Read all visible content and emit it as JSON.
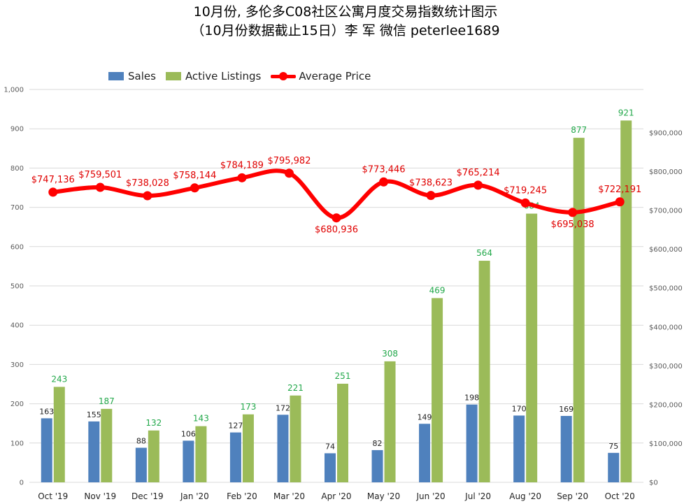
{
  "title_line1": "10月份, 多伦多C08社区公寓月度交易指数统计图示",
  "title_line2": "（10月份数据截止15日）李 军  微信  peterlee1689",
  "colors": {
    "sales": "#4f81bd",
    "listings": "#9bbb59",
    "price": "#ff0000",
    "grid": "#d9d9d9",
    "listings_label": "#22a84a"
  },
  "chart_data": {
    "type": "bar",
    "categories": [
      "Oct '19",
      "Nov '19",
      "Dec '19",
      "Jan '20",
      "Feb '20",
      "Mar '20",
      "Apr '20",
      "May '20",
      "Jun '20",
      "Jul '20",
      "Aug '20",
      "Sep '20",
      "Oct '20"
    ],
    "series": [
      {
        "name": "Sales",
        "type": "bar",
        "axis": "left",
        "values": [
          163,
          155,
          88,
          106,
          127,
          172,
          74,
          82,
          149,
          198,
          170,
          169,
          75
        ]
      },
      {
        "name": "Active Listings",
        "type": "bar",
        "axis": "left",
        "values": [
          243,
          187,
          132,
          143,
          173,
          221,
          251,
          308,
          469,
          564,
          684,
          877,
          921
        ]
      },
      {
        "name": "Average Price",
        "type": "line",
        "axis": "right",
        "values": [
          747136,
          759501,
          738028,
          758144,
          784189,
          795982,
          680936,
          773446,
          738623,
          765214,
          719245,
          695038,
          722191
        ],
        "labels": [
          "$747,136",
          "$759,501",
          "$738,028",
          "$758,144",
          "$784,189",
          "$795,982",
          "$680,936",
          "$773,446",
          "$738,623",
          "$765,214",
          "$719,245",
          "$695,038",
          "$722,191"
        ]
      }
    ],
    "y_left": {
      "ylim": [
        0,
        1000
      ],
      "ticks": [
        "0",
        "100",
        "200",
        "300",
        "400",
        "500",
        "600",
        "700",
        "800",
        "900",
        "1,000"
      ]
    },
    "y_right": {
      "ylim": [
        0,
        900000
      ],
      "ticks": [
        "$0",
        "$100,000",
        "$200,000",
        "$300,000",
        "$400,000",
        "$500,000",
        "$600,000",
        "$700,000",
        "$800,000",
        "$900,000"
      ]
    },
    "grid": true,
    "legend_position": "top-left"
  }
}
